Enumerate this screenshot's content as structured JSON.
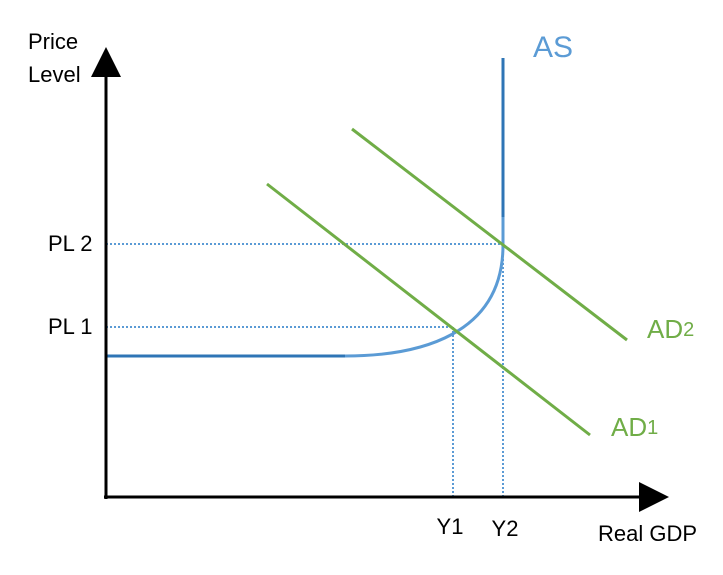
{
  "axes": {
    "y_label": [
      "Price",
      "Level"
    ],
    "x_label": "Real GDP"
  },
  "curves": {
    "as": {
      "label": "AS"
    },
    "ad2": {
      "label": "AD",
      "subscript": "2"
    },
    "ad1": {
      "label": "AD",
      "subscript": "1"
    }
  },
  "price_levels": [
    "PL 1",
    "PL 2"
  ],
  "outputs": [
    "Y1",
    "Y2"
  ]
}
